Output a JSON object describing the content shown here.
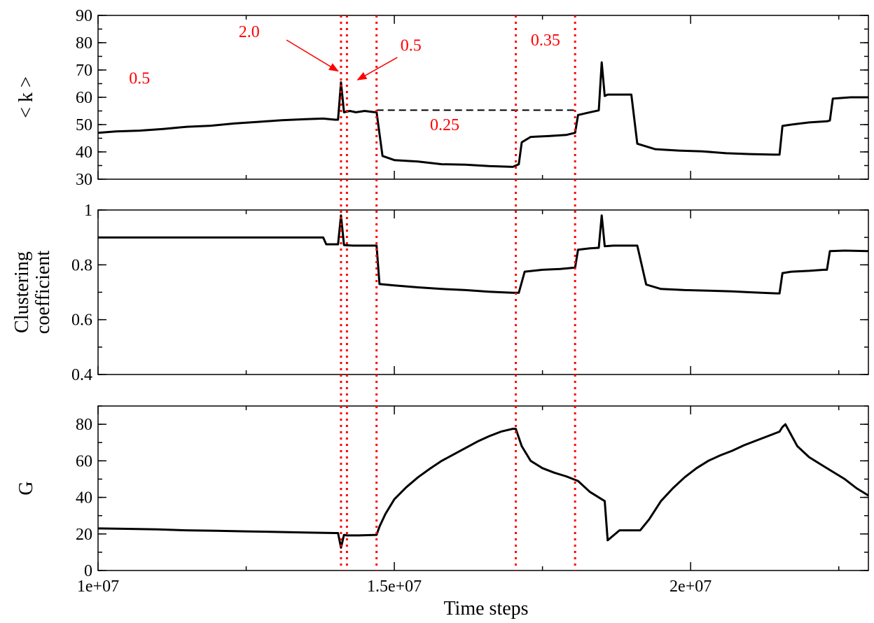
{
  "chart_data": {
    "type": "line",
    "xlabel": "Time steps",
    "xlim": [
      10000000,
      23000000
    ],
    "xticks": [
      10000000,
      15000000,
      20000000
    ],
    "xtick_labels": [
      "1e+07",
      "1.5e+07",
      "2e+07"
    ],
    "x_minor_step": 2500000,
    "vlines": [
      14100000,
      14200000,
      14700000,
      17050000,
      18050000
    ],
    "vline_color": "#ff0000",
    "line_color": "#000000",
    "panels": [
      {
        "id": "k",
        "ylabel": "< k >",
        "ylim": [
          30,
          90
        ],
        "yticks": [
          30,
          40,
          50,
          60,
          70,
          80,
          90
        ],
        "ytick_labels": [
          "30",
          "40",
          "50",
          "60",
          "70",
          "80",
          "90"
        ],
        "y_minor_step": 5,
        "series": [
          {
            "x": [
              10000000,
              10300000,
              10700000,
              11100000,
              11500000,
              11900000,
              12300000,
              12700000,
              13100000,
              13500000,
              13800000,
              14000000,
              14050000,
              14100000,
              14150000,
              14250000,
              14350000,
              14500000,
              14650000,
              14700000,
              14800000,
              15000000,
              15400000,
              15800000,
              16200000,
              16600000,
              17000000,
              17100000,
              17150000,
              17300000,
              17600000,
              17900000,
              18050000,
              18100000,
              18300000,
              18450000,
              18500000,
              18550000,
              18600000,
              18700000,
              18900000,
              19000000,
              19100000,
              19400000,
              19800000,
              20200000,
              20600000,
              21000000,
              21400000,
              21500000,
              21550000,
              21700000,
              22000000,
              22300000,
              22350000,
              22400000,
              22700000,
              23000000
            ],
            "y": [
              47,
              47.5,
              47.8,
              48.4,
              49.2,
              49.6,
              50.4,
              51,
              51.6,
              52,
              52.2,
              51.8,
              51.8,
              65.5,
              54.5,
              55,
              54.5,
              55,
              54.6,
              54.6,
              38.5,
              37,
              36.5,
              35.5,
              35.3,
              34.8,
              34.5,
              35.5,
              43.5,
              45.5,
              45.8,
              46.2,
              47,
              53.5,
              54.5,
              55.2,
              72.8,
              60.5,
              61,
              61,
              61,
              61,
              43,
              41,
              40.5,
              40.2,
              39.5,
              39.2,
              39,
              39,
              49.5,
              50,
              50.8,
              51.2,
              51.5,
              59.5,
              60,
              60
            ]
          }
        ],
        "hline": {
          "x": [
            14700000,
            18100000
          ],
          "y": 55.3,
          "style": "dashed"
        },
        "annotations": [
          {
            "text": "0.5",
            "x": 10700000,
            "y": 65
          },
          {
            "text": "2.0",
            "x": 12550000,
            "y": 82
          },
          {
            "text": "0.5",
            "x": 15280000,
            "y": 77
          },
          {
            "text": "0.35",
            "x": 17550000,
            "y": 79
          },
          {
            "text": "0.25",
            "x": 15850000,
            "y": 48
          }
        ],
        "arrows": [
          {
            "from": [
              13180000,
              81
            ],
            "to": [
              14050000,
              69.6
            ]
          },
          {
            "from": [
              15050000,
              74.6
            ],
            "to": [
              14380000,
              66.4
            ]
          }
        ]
      },
      {
        "id": "cc",
        "ylabel": "Clustering coefficient",
        "ylim": [
          0.4,
          1
        ],
        "yticks": [
          0.4,
          0.6,
          0.8,
          1
        ],
        "ytick_labels": [
          "0.4",
          "0.6",
          "0.8",
          "1"
        ],
        "y_minor_step": 0.1,
        "series": [
          {
            "x": [
              10000000,
              10300000,
              10700000,
              11100000,
              11500000,
              11900000,
              12300000,
              12700000,
              13100000,
              13500000,
              13800000,
              13850000,
              14050000,
              14100000,
              14150000,
              14300000,
              14500000,
              14650000,
              14700000,
              14750000,
              15000000,
              15400000,
              15800000,
              16200000,
              16600000,
              17000000,
              17050000,
              17100000,
              17200000,
              17500000,
              17800000,
              18050000,
              18100000,
              18300000,
              18450000,
              18500000,
              18550000,
              18700000,
              18900000,
              19100000,
              19250000,
              19500000,
              19900000,
              20300000,
              20700000,
              21000000,
              21200000,
              21450000,
              21500000,
              21550000,
              21700000,
              22000000,
              22250000,
              22300000,
              22350000,
              22600000,
              23000000
            ],
            "y": [
              0.9,
              0.9,
              0.9,
              0.9,
              0.9,
              0.9,
              0.9,
              0.9,
              0.9,
              0.9,
              0.9,
              0.875,
              0.875,
              0.98,
              0.872,
              0.87,
              0.87,
              0.87,
              0.87,
              0.73,
              0.725,
              0.718,
              0.712,
              0.708,
              0.702,
              0.698,
              0.698,
              0.698,
              0.775,
              0.782,
              0.785,
              0.79,
              0.855,
              0.86,
              0.862,
              0.98,
              0.868,
              0.87,
              0.87,
              0.87,
              0.728,
              0.712,
              0.708,
              0.706,
              0.703,
              0.7,
              0.698,
              0.696,
              0.696,
              0.77,
              0.775,
              0.778,
              0.782,
              0.782,
              0.85,
              0.852,
              0.85
            ]
          }
        ]
      },
      {
        "id": "g",
        "ylabel": "G",
        "ylim": [
          0,
          90
        ],
        "yticks": [
          0,
          20,
          40,
          60,
          80
        ],
        "ytick_labels": [
          "0",
          "20",
          "40",
          "60",
          "80"
        ],
        "y_minor_step": 10,
        "series": [
          {
            "x": [
              10000000,
              10500000,
              11000000,
              11500000,
              12000000,
              12500000,
              13000000,
              13500000,
              14000000,
              14050000,
              14100000,
              14150000,
              14200000,
              14400000,
              14700000,
              14750000,
              14850000,
              15000000,
              15200000,
              15400000,
              15600000,
              15800000,
              16000000,
              16200000,
              16400000,
              16600000,
              16800000,
              17000000,
              17050000,
              17150000,
              17300000,
              17500000,
              17700000,
              17900000,
              18100000,
              18300000,
              18500000,
              18550000,
              18600000,
              18800000,
              19000000,
              19100000,
              19150000,
              19300000,
              19500000,
              19700000,
              19900000,
              20100000,
              20300000,
              20500000,
              20700000,
              20900000,
              21100000,
              21300000,
              21500000,
              21550000,
              21600000,
              21800000,
              22000000,
              22200000,
              22400000,
              22600000,
              22800000,
              23000000
            ],
            "y": [
              23,
              22.8,
              22.5,
              22,
              21.7,
              21.4,
              21.1,
              20.8,
              20.5,
              20.5,
              12.5,
              19.5,
              19.2,
              19.2,
              19.5,
              24,
              31,
              39,
              45.5,
              51,
              55.7,
              60,
              63.5,
              67,
              70.5,
              73.5,
              76,
              77.5,
              77.5,
              68,
              60,
              56,
              53.5,
              51.5,
              49,
              43,
              39,
              38,
              16.5,
              22,
              22,
              22,
              22,
              28,
              38,
              45,
              51,
              56,
              60,
              63,
              65.5,
              68.5,
              71,
              73.5,
              76,
              78.5,
              80,
              68,
              62,
              58,
              54,
              50,
              45,
              41
            ]
          }
        ]
      }
    ]
  }
}
